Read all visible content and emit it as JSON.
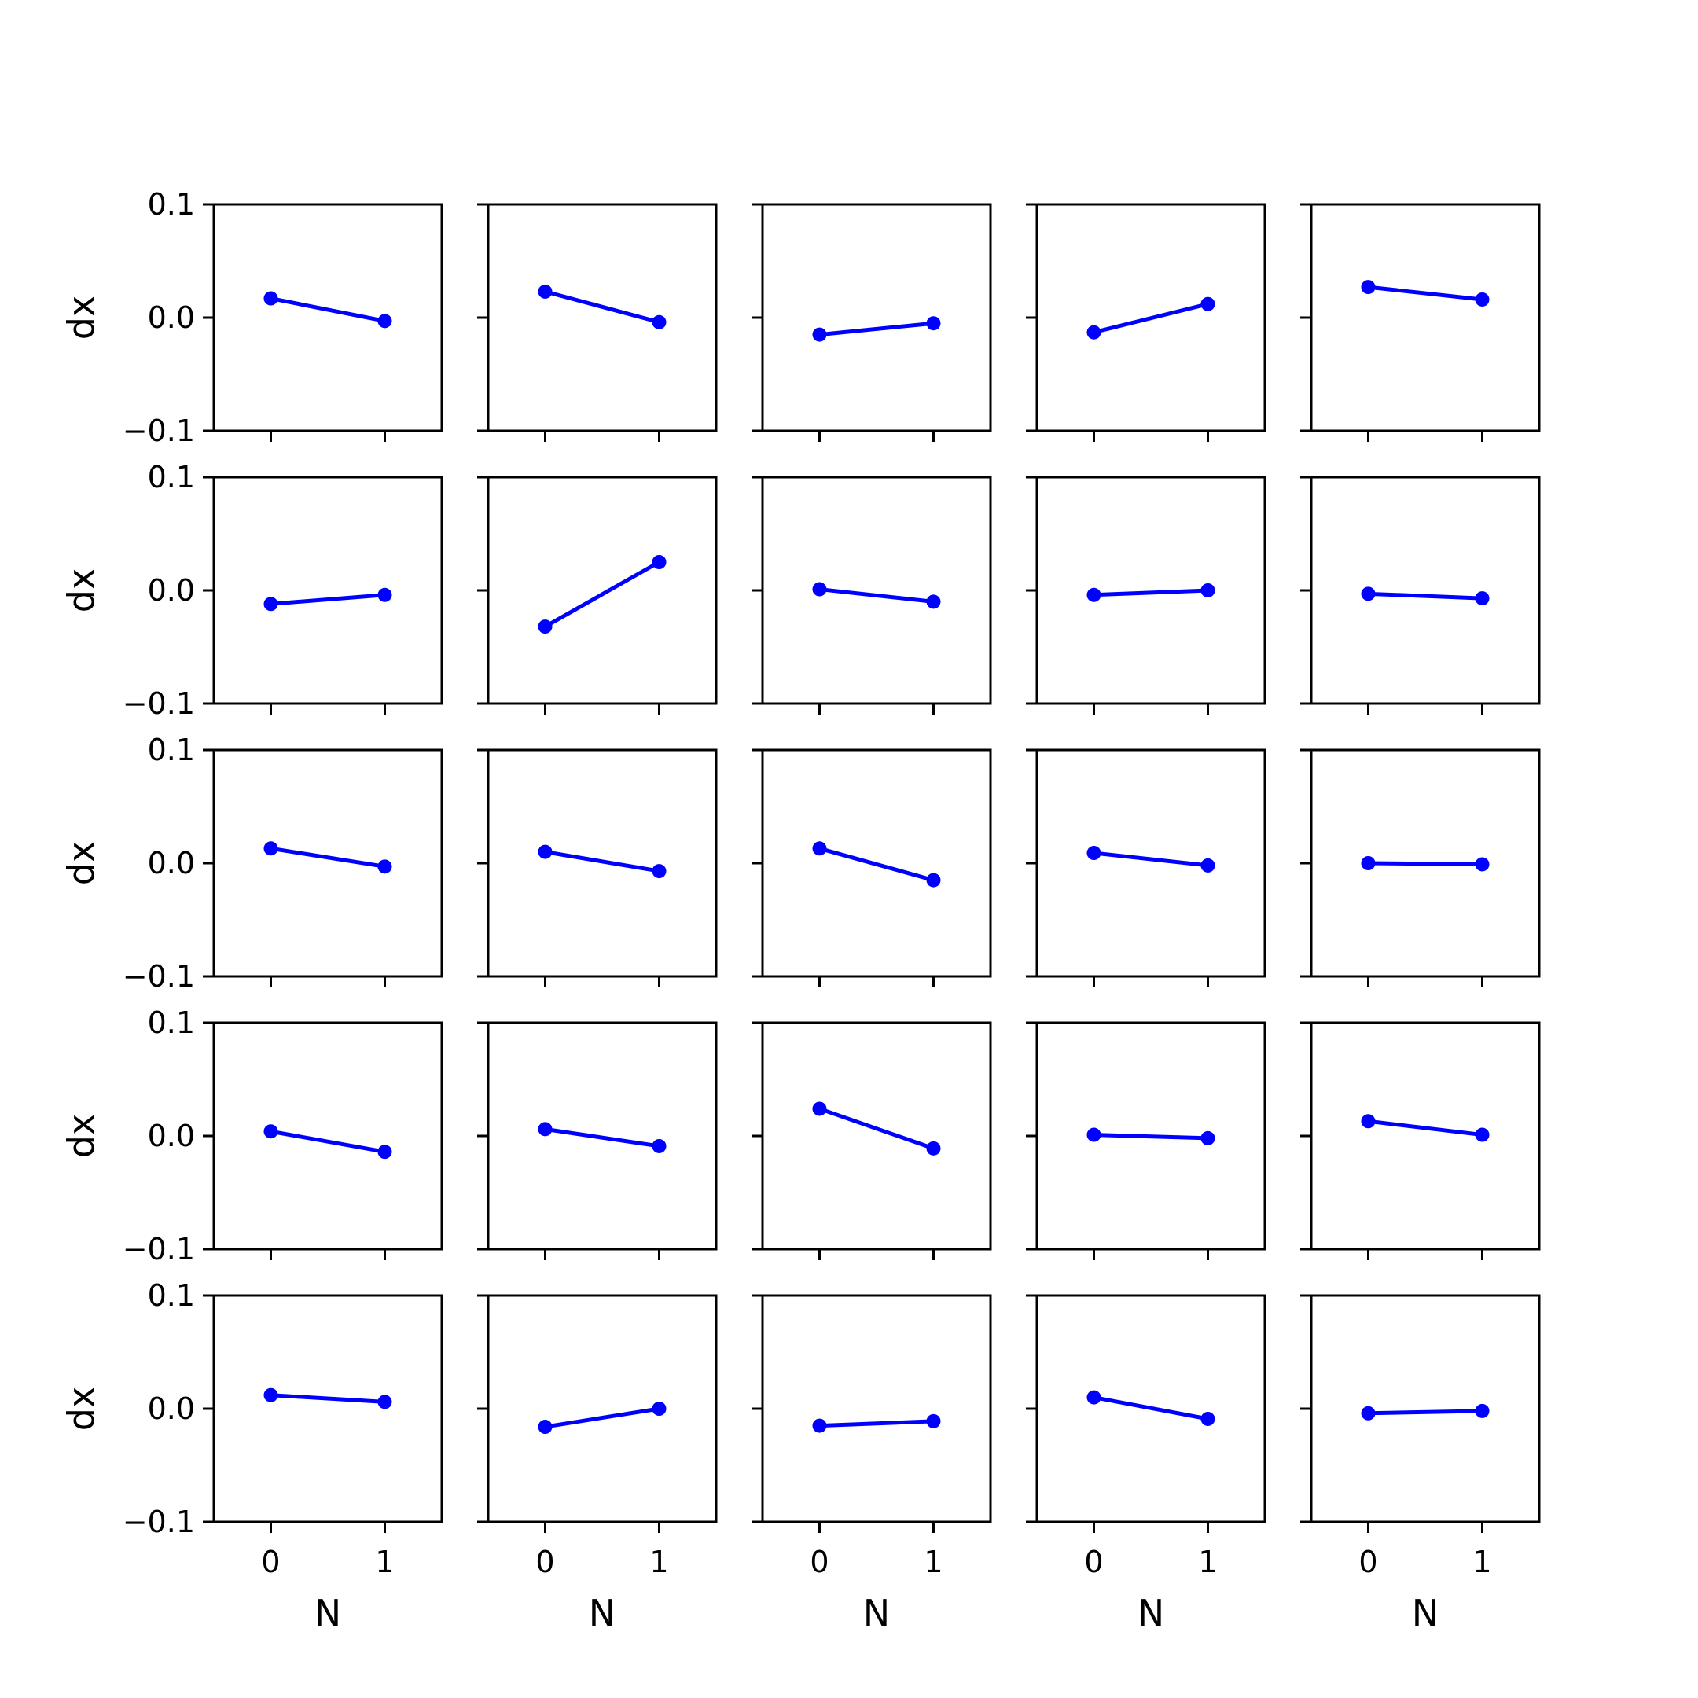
{
  "chart_data": {
    "type": "line",
    "layout": {
      "rows": 5,
      "cols": 5
    },
    "xlabel": "N",
    "ylabel": "dx",
    "xlim": [
      -0.5,
      1.5
    ],
    "ylim": [
      -0.1,
      0.1
    ],
    "xticks": [
      0,
      1
    ],
    "xtick_labels": [
      "0",
      "1"
    ],
    "yticks": [
      0.1,
      0.0,
      -0.1
    ],
    "ytick_labels": [
      "0.1",
      "0.0",
      "−0.1"
    ],
    "grid": false,
    "line_color": "#0000ff",
    "x": [
      0,
      1
    ],
    "panels": [
      [
        0.017,
        -0.003
      ],
      [
        0.023,
        -0.004
      ],
      [
        -0.015,
        -0.005
      ],
      [
        -0.013,
        0.012
      ],
      [
        0.027,
        0.016
      ],
      [
        -0.012,
        -0.004
      ],
      [
        -0.032,
        0.025
      ],
      [
        0.001,
        -0.01
      ],
      [
        -0.004,
        0.0
      ],
      [
        -0.003,
        -0.007
      ],
      [
        0.013,
        -0.003
      ],
      [
        0.01,
        -0.007
      ],
      [
        0.013,
        -0.015
      ],
      [
        0.009,
        -0.002
      ],
      [
        0.0,
        -0.001
      ],
      [
        0.004,
        -0.014
      ],
      [
        0.006,
        -0.009
      ],
      [
        0.024,
        -0.011
      ],
      [
        0.001,
        -0.002
      ],
      [
        0.013,
        0.001
      ],
      [
        0.012,
        0.006
      ],
      [
        -0.016,
        0.0
      ],
      [
        -0.015,
        -0.011
      ],
      [
        0.01,
        -0.009
      ],
      [
        -0.004,
        -0.002
      ]
    ]
  }
}
